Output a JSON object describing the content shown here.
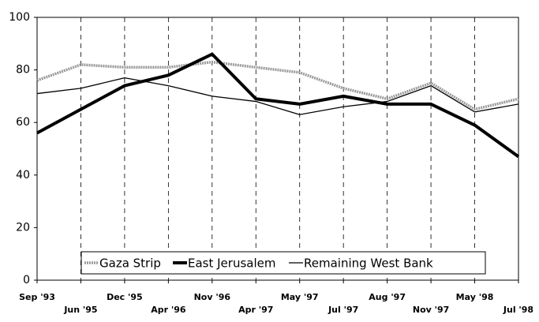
{
  "chart_data": {
    "type": "line",
    "categories": [
      "Sep '93",
      "Jun '95",
      "Dec '95",
      "Apr '96",
      "Nov '96",
      "Apr '97",
      "May '97",
      "Jul '97",
      "Aug '97",
      "Nov '97",
      "May '98",
      "Jul '98"
    ],
    "series": [
      {
        "name": "Gaza Strip",
        "color": "#9a9a9a",
        "values": [
          76,
          82,
          81,
          81,
          83,
          81,
          79,
          73,
          69,
          75,
          65,
          69
        ]
      },
      {
        "name": "East Jerusalem",
        "color": "#000000",
        "values": [
          56,
          65,
          74,
          78,
          86,
          69,
          67,
          70,
          67,
          67,
          59,
          47
        ]
      },
      {
        "name": "Remaining West Bank",
        "color": "#000000",
        "values": [
          71,
          73,
          77,
          74,
          70,
          68,
          63,
          66,
          68,
          74,
          64,
          67
        ]
      }
    ],
    "ylim": [
      0,
      100
    ],
    "yticks": [
      0,
      20,
      40,
      60,
      80,
      100
    ],
    "grid": true,
    "legend": "bottom"
  }
}
